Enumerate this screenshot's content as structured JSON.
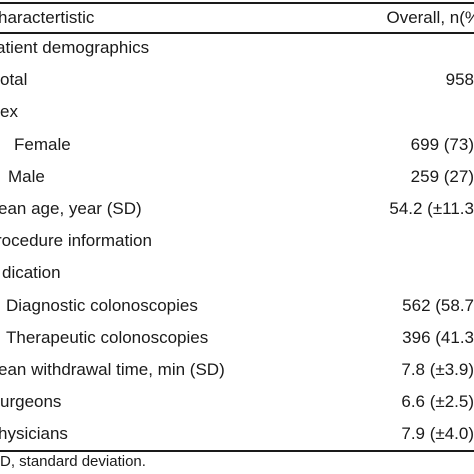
{
  "header": {
    "label": "haractertistic",
    "value": "Overall, n(%"
  },
  "rows": [
    {
      "label": "atient demographics",
      "value": "",
      "indent": -4
    },
    {
      "label": "otal",
      "value": "958",
      "indent": 0
    },
    {
      "label": "ex",
      "value": "",
      "indent": 0
    },
    {
      "label": "Female",
      "value": "699 (73)",
      "indent": 14
    },
    {
      "label": "Male",
      "value": "259 (27)",
      "indent": 8
    },
    {
      "label": "ean age, year (SD)",
      "value": "54.2 (±11.3",
      "indent": -2
    },
    {
      "label": "rocedure information",
      "value": "",
      "indent": -4
    },
    {
      "label": "dication",
      "value": "",
      "indent": 2
    },
    {
      "label": "Diagnostic colonoscopies",
      "value": "562 (58.7",
      "indent": 6
    },
    {
      "label": "Therapeutic colonoscopies",
      "value": "396 (41.3",
      "indent": 6
    },
    {
      "label": "ean withdrawal time, min (SD)",
      "value": "7.8 (±3.9)",
      "indent": -2
    },
    {
      "label": "urgeons",
      "value": "6.6 (±2.5)",
      "indent": 0
    },
    {
      "label": "hysicians",
      "value": "7.9 (±4.0)",
      "indent": -2
    }
  ],
  "footnote": "D, standard deviation."
}
